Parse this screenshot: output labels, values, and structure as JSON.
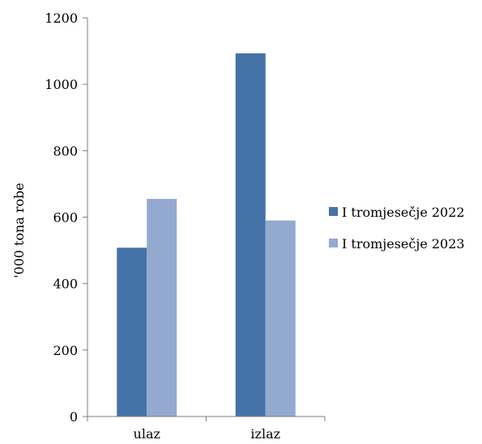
{
  "chart_data": {
    "type": "bar",
    "categories": [
      "ulaz",
      "izlaz"
    ],
    "series": [
      {
        "name": "I tromjesečje 2022",
        "values": [
          508,
          1093
        ],
        "color": "#4572A7"
      },
      {
        "name": "I tromjesečje 2023",
        "values": [
          655,
          590
        ],
        "color": "#94A9CF"
      }
    ],
    "title": "",
    "xlabel": "",
    "ylabel": "'000 tona robe",
    "ylim": [
      0,
      1200
    ],
    "yticks": [
      0,
      200,
      400,
      600,
      800,
      1000,
      1200
    ],
    "grid": false,
    "legend_position": "right"
  }
}
